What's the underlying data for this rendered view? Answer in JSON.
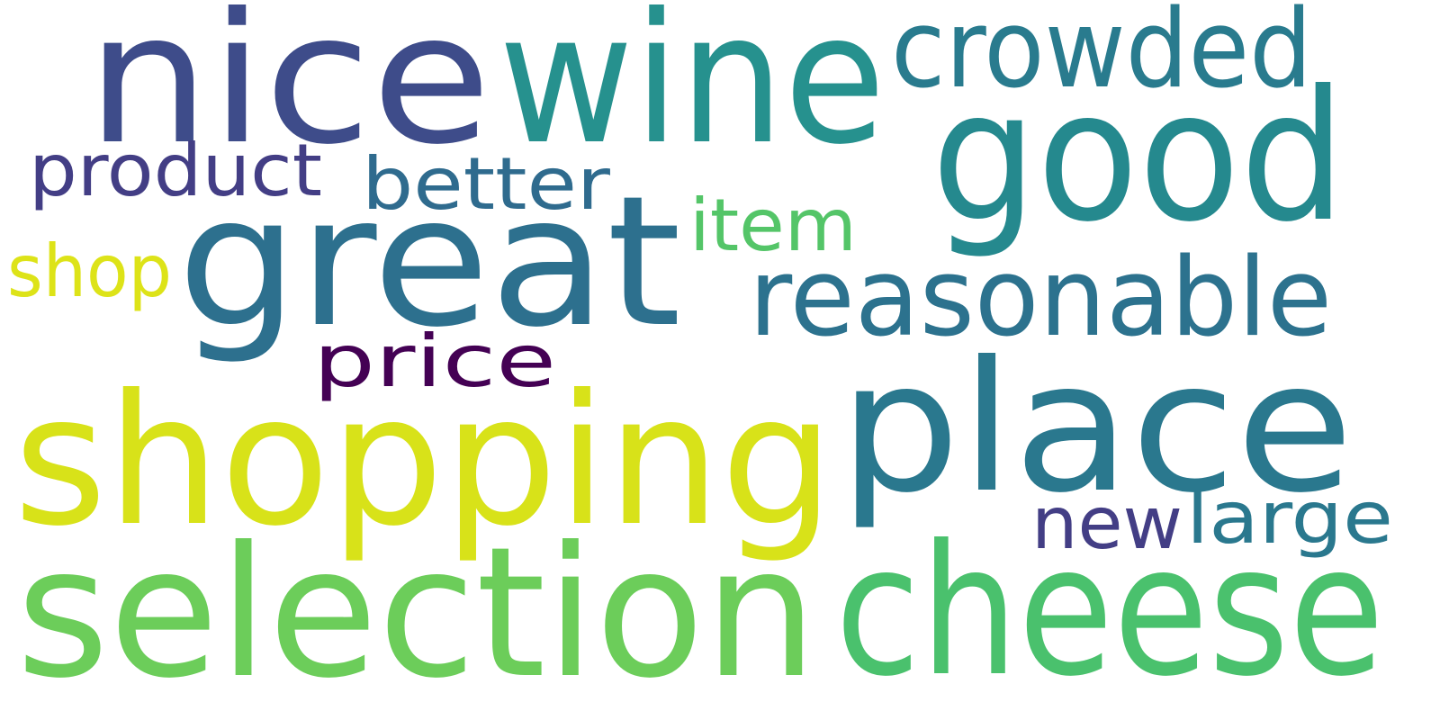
{
  "background": "#ffffff",
  "words": [
    {
      "id": "nice",
      "text": "nice",
      "color": "#3e4c8a"
    },
    {
      "id": "wine",
      "text": "wine",
      "color": "#26918e"
    },
    {
      "id": "crowded",
      "text": "crowded",
      "color": "#297b8e"
    },
    {
      "id": "good",
      "text": "good",
      "color": "#25898e"
    },
    {
      "id": "product",
      "text": "product",
      "color": "#433e85"
    },
    {
      "id": "better",
      "text": "better",
      "color": "#2f6b8e"
    },
    {
      "id": "item",
      "text": "item",
      "color": "#54c568"
    },
    {
      "id": "great",
      "text": "great",
      "color": "#2d708e"
    },
    {
      "id": "shop",
      "text": "shop",
      "color": "#dde318"
    },
    {
      "id": "reasonable",
      "text": "reasonable",
      "color": "#2c728e"
    },
    {
      "id": "price",
      "text": "price",
      "color": "#440154"
    },
    {
      "id": "shopping",
      "text": "shopping",
      "color": "#d8e219"
    },
    {
      "id": "place",
      "text": "place",
      "color": "#2a788e"
    },
    {
      "id": "new",
      "text": "new",
      "color": "#433e85"
    },
    {
      "id": "large",
      "text": "large",
      "color": "#2a788e"
    },
    {
      "id": "selection",
      "text": "selection",
      "color": "#6ccd5a"
    },
    {
      "id": "cheese",
      "text": "cheese",
      "color": "#4ac16d"
    }
  ]
}
